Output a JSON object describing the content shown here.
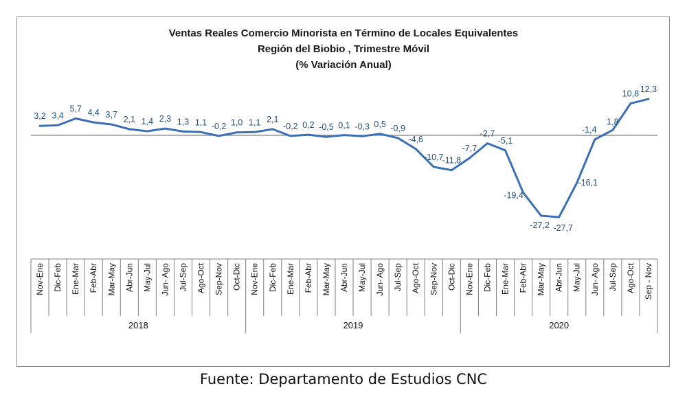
{
  "chart_data": {
    "type": "line",
    "title": "Ventas Reales Comercio Minorista  en Término de Locales Equivalentes",
    "subtitle": "Región del Biobio , Trimestre Móvil",
    "subtitle2": "(% Variación Anual)",
    "categories": [
      "Nov-Ene",
      "Dic-Feb",
      "Ene-Mar",
      "Feb-Abr",
      "Mar-May",
      "Abr-Jun",
      "May-Jul",
      "Jun- Ago",
      "Jul-Sep",
      "Ago-Oct",
      "Sep-Nov",
      "Oct-Dic",
      "Nov-Ene",
      "Dic-Feb",
      "Ene-Mar",
      "Feb-Abr",
      "Mar-May",
      "Abr-Jun",
      "May-Jul",
      "Jun- Ago",
      "Jul-Sep",
      "Ago-Oct",
      "Sep-Nov",
      "Oct-Dic",
      "Nov-Ene",
      "Dic-Feb",
      "Ene-Mar",
      "Feb-Abr",
      "Mar-May",
      "Abr-Jun",
      "May-Jul",
      "Jun- Ago",
      "Jul-Sep",
      "Ago-Oct",
      "Sep - Nov"
    ],
    "values": [
      3.2,
      3.4,
      5.7,
      4.4,
      3.7,
      2.1,
      1.4,
      2.3,
      1.3,
      1.1,
      -0.2,
      1.0,
      1.1,
      2.1,
      -0.2,
      0.2,
      -0.5,
      0.1,
      -0.3,
      0.5,
      -0.9,
      -4.6,
      -10.7,
      -11.8,
      -7.7,
      -2.7,
      -5.1,
      -19.4,
      -27.2,
      -27.7,
      -16.1,
      -1.4,
      1.8,
      10.8,
      12.3
    ],
    "labels": [
      "3,2",
      "3,4",
      "5,7",
      "4,4",
      "3,7",
      "2,1",
      "1,4",
      "2,3",
      "1,3",
      "1,1",
      "-0,2",
      "1,0",
      "1,1",
      "2,1",
      "-0,2",
      "0,2",
      "-0,5",
      "0,1",
      "-0,3",
      "0,5",
      "-0,9",
      "-4,6",
      "-10,7",
      "-11,8",
      "-7,7",
      "-2,7",
      "-5,1",
      "-19,4",
      "-27,2",
      "-27,7",
      "-16,1",
      "-1,4",
      "1,8",
      "10,8",
      "12,3"
    ],
    "year_groups": [
      {
        "label": "2018",
        "count": 12
      },
      {
        "label": "2019",
        "count": 12
      },
      {
        "label": "2020",
        "count": 11
      }
    ],
    "ylim": [
      -30,
      14
    ],
    "grid": false,
    "line_color": "#3a6fb5",
    "label_color": "#1f4e79"
  },
  "source": "Fuente: Departamento de Estudios CNC"
}
